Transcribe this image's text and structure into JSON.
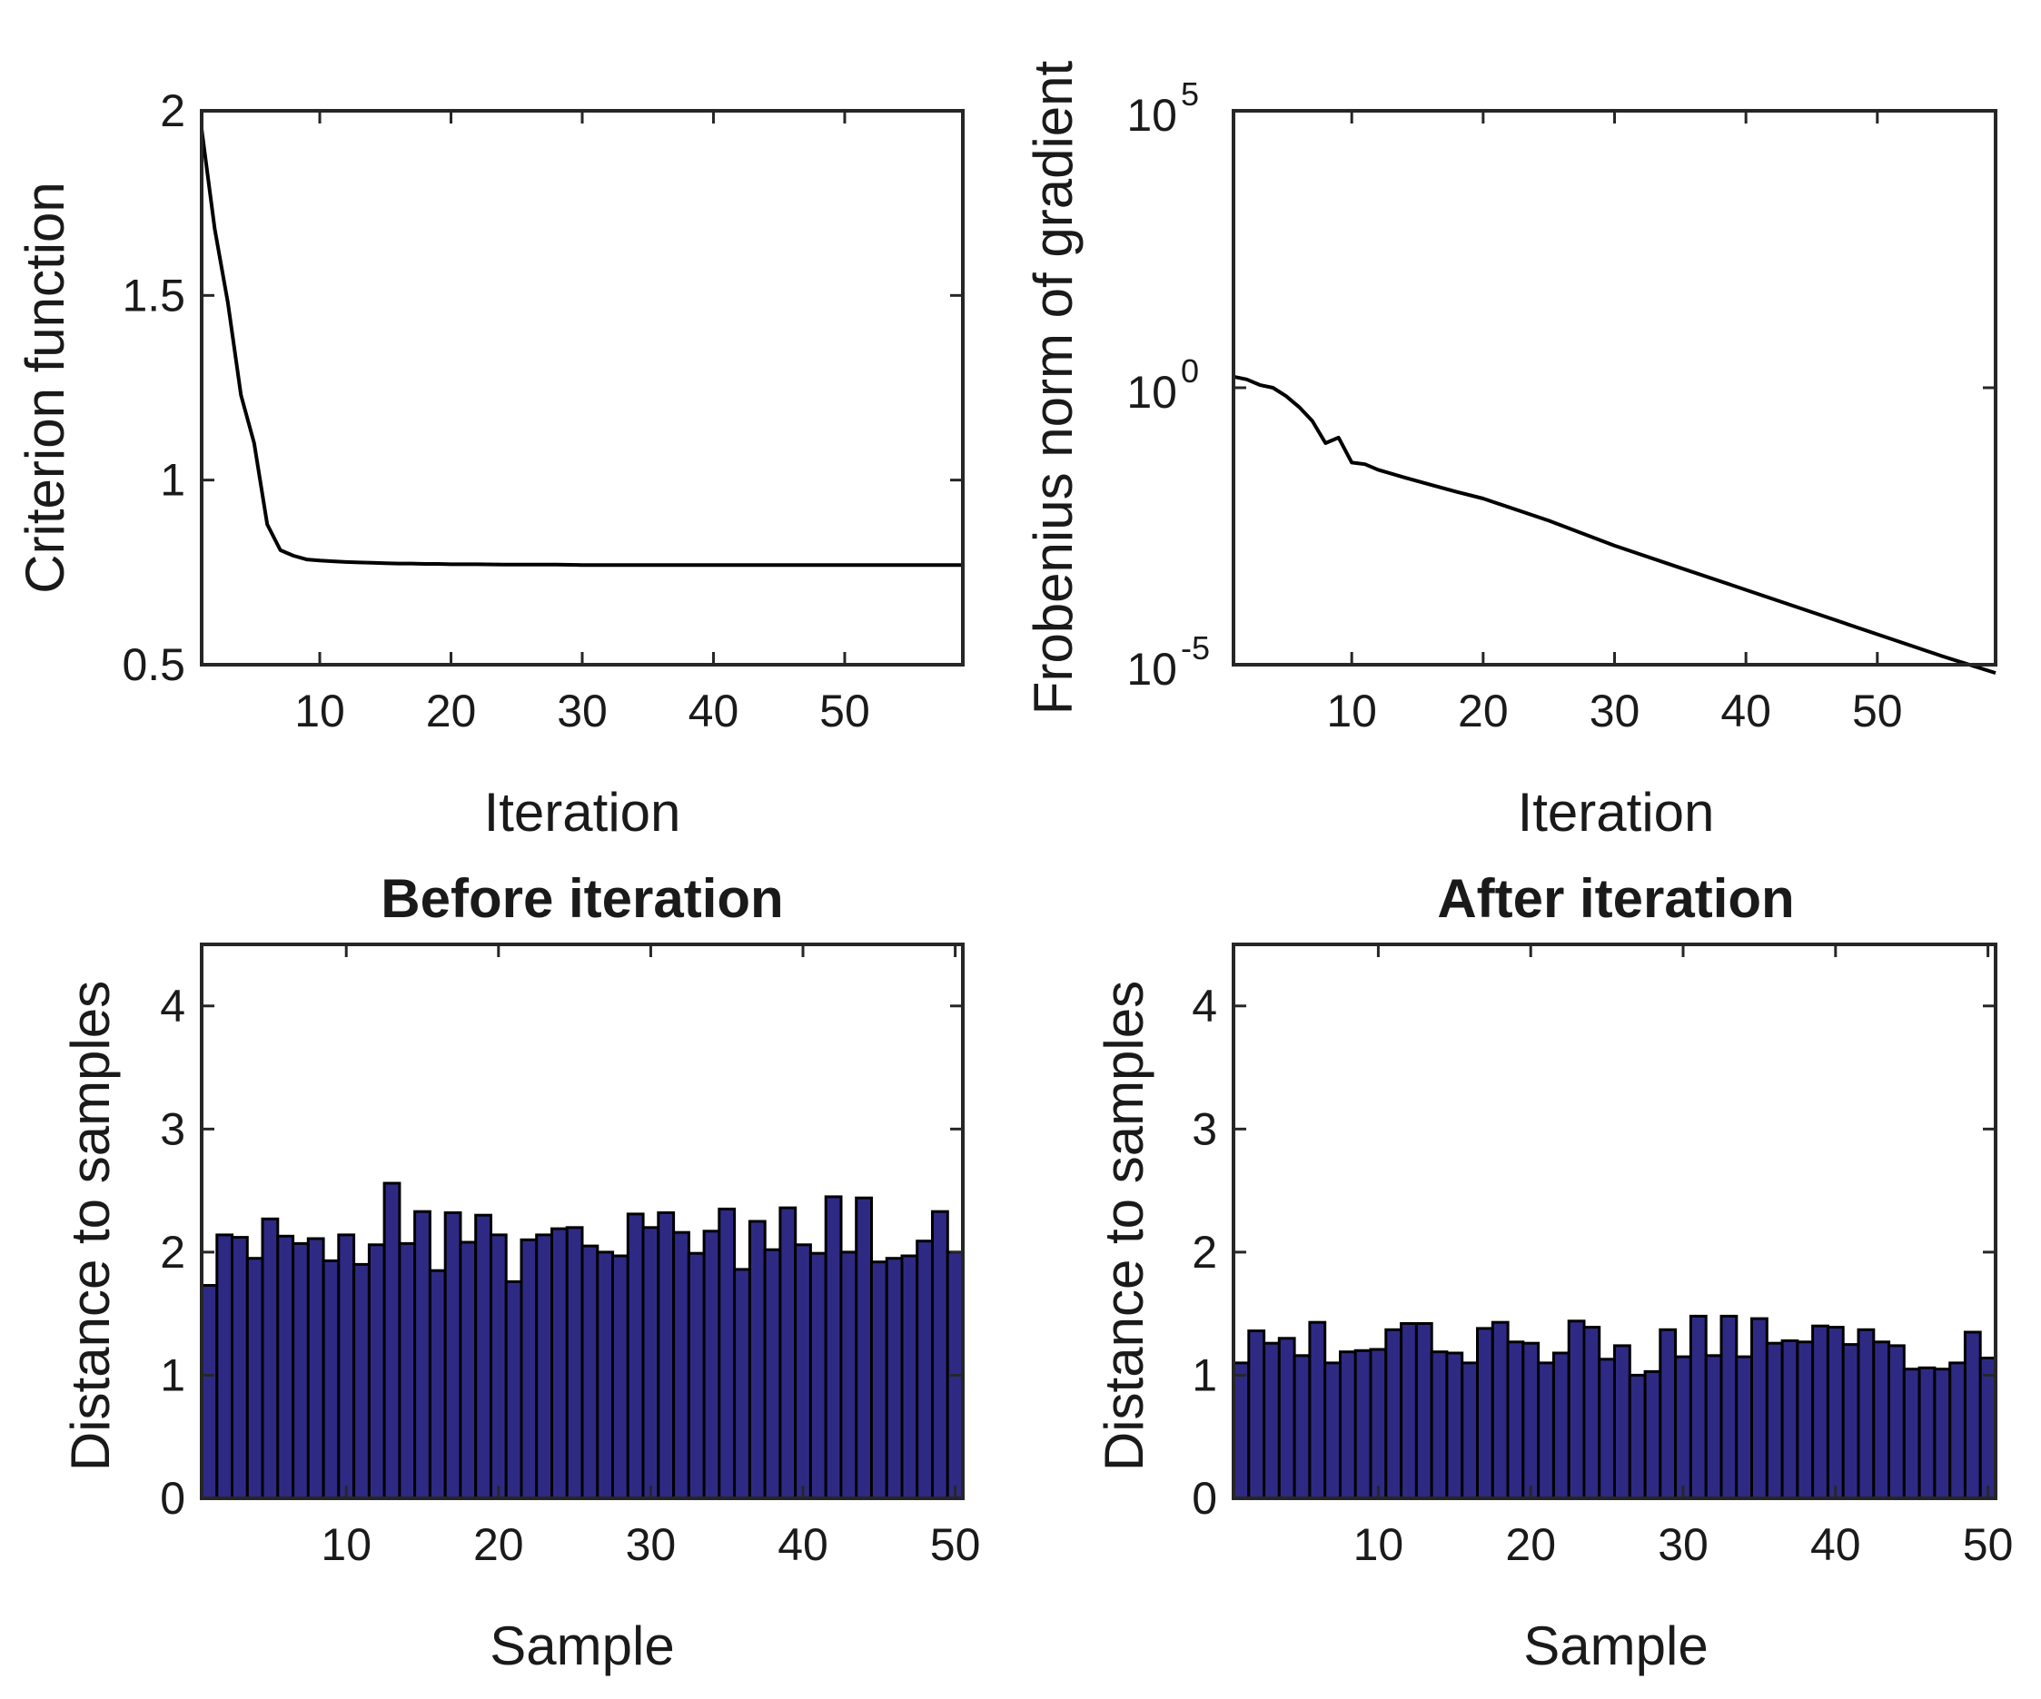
{
  "colors": {
    "bar_fill": "#2e2a84",
    "bar_edge": "#000000",
    "line": "#000000",
    "axis": "#262626"
  },
  "chart_data": [
    {
      "id": "criterion",
      "type": "line",
      "title": "",
      "xlabel": "Iteration",
      "ylabel": "Criterion function",
      "xlim": [
        1,
        59
      ],
      "ylim": [
        0.5,
        2
      ],
      "xticks": [
        10,
        20,
        30,
        40,
        50
      ],
      "xtick_labels": [
        "10",
        "20",
        "30",
        "40",
        "50"
      ],
      "yticks": [
        0.5,
        1,
        1.5,
        2
      ],
      "ytick_labels": [
        "0.5",
        "1",
        "1.5",
        "2"
      ],
      "x": [
        1,
        2,
        3,
        4,
        5,
        6,
        7,
        8,
        9,
        10,
        11,
        12,
        13,
        14,
        15,
        16,
        17,
        18,
        19,
        20,
        22,
        24,
        26,
        28,
        30,
        35,
        40,
        45,
        50,
        55,
        59
      ],
      "y": [
        1.95,
        1.68,
        1.48,
        1.23,
        1.1,
        0.88,
        0.81,
        0.795,
        0.785,
        0.782,
        0.78,
        0.778,
        0.777,
        0.776,
        0.775,
        0.774,
        0.774,
        0.773,
        0.773,
        0.772,
        0.772,
        0.771,
        0.771,
        0.771,
        0.77,
        0.77,
        0.77,
        0.77,
        0.77,
        0.77,
        0.77
      ]
    },
    {
      "id": "gradient",
      "type": "line",
      "yscale": "log",
      "title": "",
      "xlabel": "Iteration",
      "ylabel": "Frobenius norm of gradient",
      "xlim": [
        1,
        59
      ],
      "ylim_log10": [
        -5,
        5
      ],
      "xticks": [
        10,
        20,
        30,
        40,
        50
      ],
      "xtick_labels": [
        "10",
        "20",
        "30",
        "40",
        "50"
      ],
      "ytick_log10": [
        -5,
        0,
        5
      ],
      "ytick_base": "10",
      "ytick_exponents": [
        "-5",
        "0",
        "5"
      ],
      "x": [
        1,
        2,
        3,
        4,
        5,
        6,
        7,
        8,
        9,
        10,
        11,
        12,
        14,
        16,
        18,
        20,
        25,
        30,
        35,
        40,
        45,
        50,
        55,
        59
      ],
      "log10_y": [
        0.2,
        0.15,
        0.05,
        0.0,
        -0.15,
        -0.35,
        -0.6,
        -1.0,
        -0.9,
        -1.35,
        -1.38,
        -1.48,
        -1.62,
        -1.75,
        -1.88,
        -2.0,
        -2.4,
        -2.85,
        -3.25,
        -3.65,
        -4.05,
        -4.45,
        -4.85,
        -5.15
      ]
    },
    {
      "id": "before",
      "type": "bar",
      "title": "Before iteration",
      "xlabel": "Sample",
      "ylabel": "Distance to samples",
      "xlim": [
        0.5,
        50.5
      ],
      "ylim": [
        0,
        4.5
      ],
      "xticks": [
        10,
        20,
        30,
        40,
        50
      ],
      "xtick_labels": [
        "10",
        "20",
        "30",
        "40",
        "50"
      ],
      "yticks": [
        0,
        1,
        2,
        3,
        4
      ],
      "ytick_labels": [
        "0",
        "1",
        "2",
        "3",
        "4"
      ],
      "values": [
        1.73,
        2.14,
        2.12,
        1.95,
        2.27,
        2.13,
        2.07,
        2.11,
        1.93,
        2.14,
        1.9,
        2.06,
        2.56,
        2.07,
        2.33,
        1.85,
        2.32,
        2.08,
        2.3,
        2.14,
        1.76,
        2.1,
        2.14,
        2.19,
        2.2,
        2.05,
        2.0,
        1.97,
        2.31,
        2.2,
        2.32,
        2.16,
        1.99,
        2.17,
        2.35,
        1.86,
        2.25,
        2.02,
        2.36,
        2.06,
        1.99,
        2.45,
        2.0,
        2.44,
        1.92,
        1.95,
        1.97,
        2.09,
        2.33,
        2.0
      ]
    },
    {
      "id": "after",
      "type": "bar",
      "title": "After iteration",
      "xlabel": "Sample",
      "ylabel": "Distance to samples",
      "xlim": [
        0.5,
        50.5
      ],
      "ylim": [
        0,
        4.5
      ],
      "xticks": [
        10,
        20,
        30,
        40,
        50
      ],
      "xtick_labels": [
        "10",
        "20",
        "30",
        "40",
        "50"
      ],
      "yticks": [
        0,
        1,
        2,
        3,
        4
      ],
      "ytick_labels": [
        "0",
        "1",
        "2",
        "3",
        "4"
      ],
      "values": [
        1.1,
        1.36,
        1.26,
        1.3,
        1.16,
        1.43,
        1.1,
        1.19,
        1.2,
        1.21,
        1.37,
        1.42,
        1.42,
        1.19,
        1.18,
        1.1,
        1.38,
        1.43,
        1.27,
        1.26,
        1.1,
        1.18,
        1.44,
        1.39,
        1.13,
        1.24,
        1.0,
        1.03,
        1.37,
        1.15,
        1.48,
        1.16,
        1.48,
        1.15,
        1.46,
        1.26,
        1.28,
        1.27,
        1.4,
        1.39,
        1.25,
        1.37,
        1.27,
        1.24,
        1.05,
        1.06,
        1.05,
        1.1,
        1.35,
        1.14
      ]
    }
  ]
}
